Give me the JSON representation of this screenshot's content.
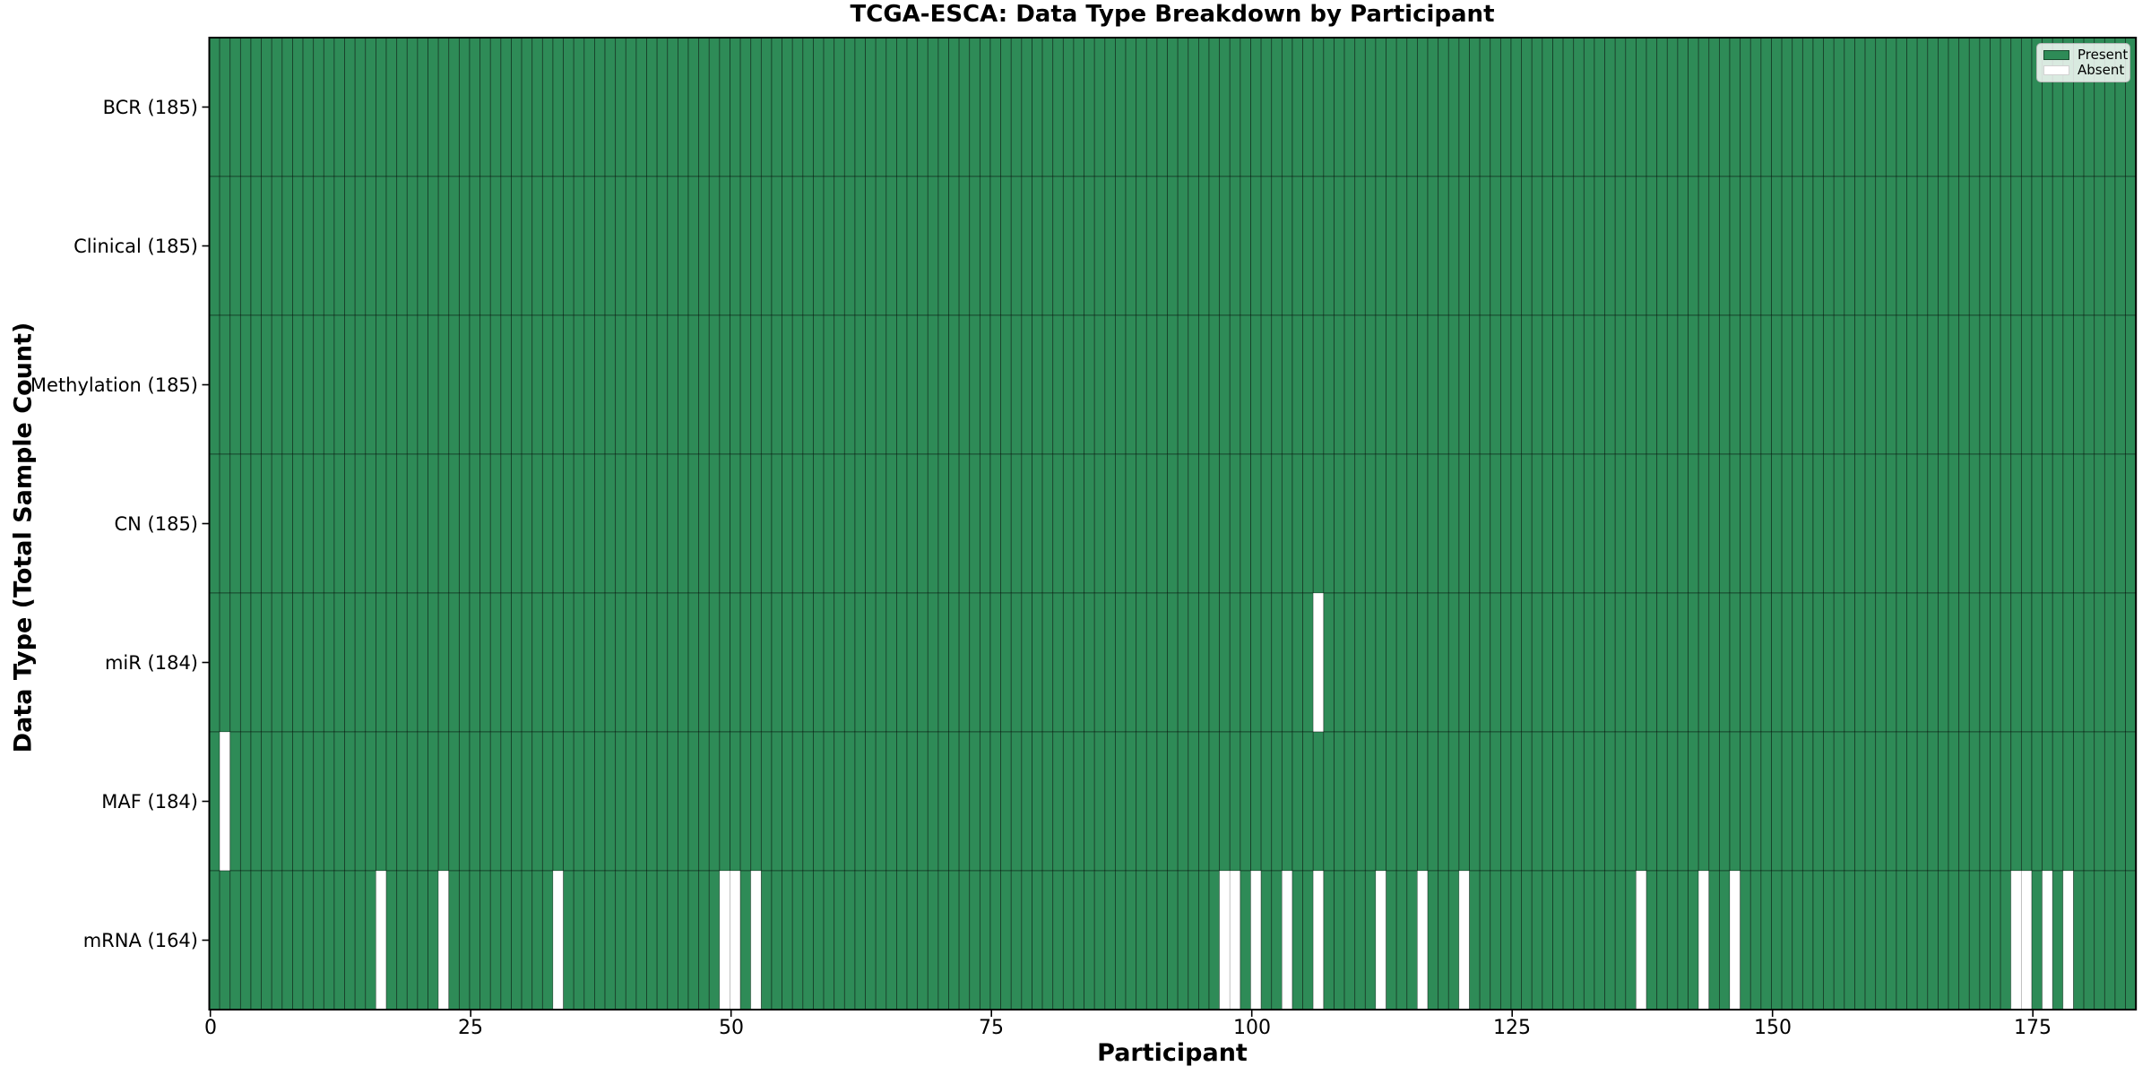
{
  "colors": {
    "present": "#2e8b57",
    "absent": "#ffffff",
    "cell_edge": "#000000",
    "spine": "#000000",
    "legend_border": "#b7b7b7"
  },
  "chart_data": {
    "type": "heatmap",
    "title": "TCGA-ESCA: Data Type Breakdown by Participant",
    "xlabel": "Participant",
    "ylabel": "Data Type (Total Sample Count)",
    "legend": [
      "Present",
      "Absent"
    ],
    "n_participants": 185,
    "x_ticks": [
      0,
      25,
      50,
      75,
      100,
      125,
      150,
      175
    ],
    "grid": false,
    "legend_position": "upper right",
    "y_tick_format": "{label} ({count})",
    "rows": [
      {
        "label": "BCR",
        "count": 185,
        "absent_participants": []
      },
      {
        "label": "Clinical",
        "count": 185,
        "absent_participants": []
      },
      {
        "label": "Methylation",
        "count": 185,
        "absent_participants": []
      },
      {
        "label": "CN",
        "count": 185,
        "absent_participants": []
      },
      {
        "label": "miR",
        "count": 184,
        "absent_participants": [
          106
        ]
      },
      {
        "label": "MAF",
        "count": 184,
        "absent_participants": [
          1
        ]
      },
      {
        "label": "mRNA",
        "count": 164,
        "absent_participants": [
          16,
          22,
          33,
          49,
          50,
          52,
          97,
          98,
          100,
          103,
          106,
          112,
          116,
          120,
          137,
          143,
          146,
          173,
          174,
          176,
          178
        ]
      }
    ]
  }
}
